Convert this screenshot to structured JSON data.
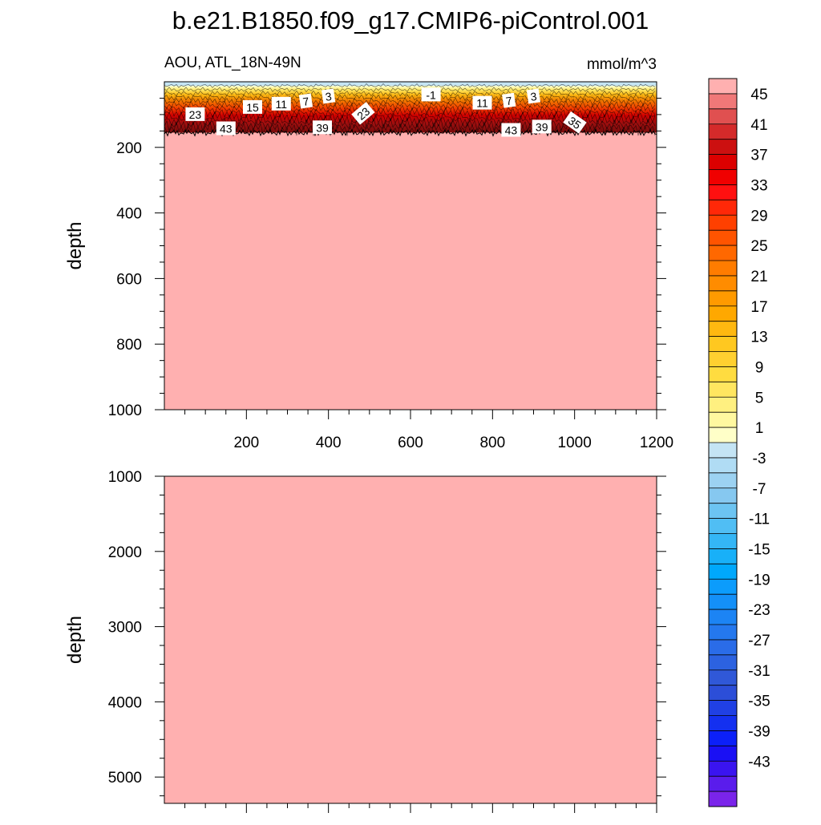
{
  "figure": {
    "title": "b.e21.B1850.f09_g17.CMIP6-piControl.001",
    "left_label": "AOU, ATL_18N-49N",
    "right_label": "mmol/m^3"
  },
  "chart_data": [
    {
      "type": "heatmap",
      "panel": "upper",
      "ylabel": "depth",
      "xlabel": "",
      "xlim": [
        0,
        1200
      ],
      "ylim": [
        1000,
        0
      ],
      "x_ticks": [
        200,
        400,
        600,
        800,
        1000,
        1200
      ],
      "y_ticks": [
        200,
        400,
        600,
        800,
        1000
      ],
      "fill_value_below_contours": 47,
      "fill_color_below_contours": "#ffb0b0",
      "surface_layer": {
        "depth_top": 0,
        "depth_bottom": 155,
        "value_range": [
          -3,
          45
        ],
        "description_bands": [
          {
            "depth": [
              0,
              10
            ],
            "value": -3
          },
          {
            "depth": [
              10,
              22
            ],
            "value": 1
          },
          {
            "depth": [
              22,
              35
            ],
            "value": 5
          },
          {
            "depth": [
              35,
              50
            ],
            "value": 11
          },
          {
            "depth": [
              50,
              65
            ],
            "value": 17
          },
          {
            "depth": [
              65,
              80
            ],
            "value": 23
          },
          {
            "depth": [
              80,
              100
            ],
            "value": 29
          },
          {
            "depth": [
              100,
              120
            ],
            "value": 35
          },
          {
            "depth": [
              120,
              140
            ],
            "value": 39
          },
          {
            "depth": [
              140,
              155
            ],
            "value": 43
          }
        ]
      },
      "contour_labels": [
        {
          "text": "23",
          "x": 75,
          "depth": 100,
          "angle": 0
        },
        {
          "text": "43",
          "x": 150,
          "depth": 143,
          "angle": 0
        },
        {
          "text": "15",
          "x": 215,
          "depth": 78,
          "angle": 0
        },
        {
          "text": "11",
          "x": 285,
          "depth": 68,
          "angle": 0
        },
        {
          "text": "7",
          "x": 345,
          "depth": 60,
          "angle": -8
        },
        {
          "text": "3",
          "x": 400,
          "depth": 45,
          "angle": -8
        },
        {
          "text": "39",
          "x": 385,
          "depth": 140,
          "angle": 0
        },
        {
          "text": "23",
          "x": 485,
          "depth": 97,
          "angle": -40
        },
        {
          "text": "-1",
          "x": 650,
          "depth": 40,
          "angle": 0
        },
        {
          "text": "11",
          "x": 775,
          "depth": 65,
          "angle": 0
        },
        {
          "text": "7",
          "x": 840,
          "depth": 58,
          "angle": -8
        },
        {
          "text": "3",
          "x": 900,
          "depth": 45,
          "angle": -8
        },
        {
          "text": "43",
          "x": 845,
          "depth": 148,
          "angle": 0
        },
        {
          "text": "39",
          "x": 920,
          "depth": 138,
          "angle": 0
        },
        {
          "text": "35",
          "x": 1000,
          "depth": 125,
          "angle": 35
        }
      ]
    },
    {
      "type": "heatmap",
      "panel": "lower",
      "ylabel": "depth",
      "xlabel": "",
      "xlim": [
        0,
        1200
      ],
      "ylim": [
        5350,
        1000
      ],
      "y_ticks": [
        1000,
        2000,
        3000,
        4000,
        5000
      ],
      "fill_value": 47,
      "fill_color": "#ffb0b0"
    }
  ],
  "colorbar": {
    "labels": [
      "45",
      "41",
      "37",
      "33",
      "29",
      "25",
      "21",
      "17",
      "13",
      "9",
      "5",
      "1",
      "-3",
      "-7",
      "-11",
      "-15",
      "-19",
      "-23",
      "-27",
      "-31",
      "-35",
      "-39",
      "-43"
    ],
    "colors": [
      "#ffb0b0",
      "#f07878",
      "#e05050",
      "#d42a2a",
      "#cc1010",
      "#dc0000",
      "#f00000",
      "#ff1010",
      "#ff2808",
      "#ff4000",
      "#ff5400",
      "#ff6800",
      "#ff7c00",
      "#ff8c00",
      "#ff9a00",
      "#ffa800",
      "#ffb810",
      "#ffc820",
      "#ffd030",
      "#ffdc40",
      "#ffe660",
      "#fff080",
      "#fff8a0",
      "#ffffc8",
      "#c4e4f4",
      "#b0dcf4",
      "#9cd2f2",
      "#86c8f0",
      "#6cc4f2",
      "#50bef4",
      "#34b6f6",
      "#18b0f8",
      "#00a8fc",
      "#0c9cfc",
      "#1490f8",
      "#1c84f4",
      "#2478ee",
      "#2a6ce8",
      "#2c62e0",
      "#3058d8",
      "#2c4ed8",
      "#2040e4",
      "#1430f0",
      "#0c20f8",
      "#1a10f4",
      "#3a14f0",
      "#5a1cec",
      "#7a24ea"
    ]
  }
}
